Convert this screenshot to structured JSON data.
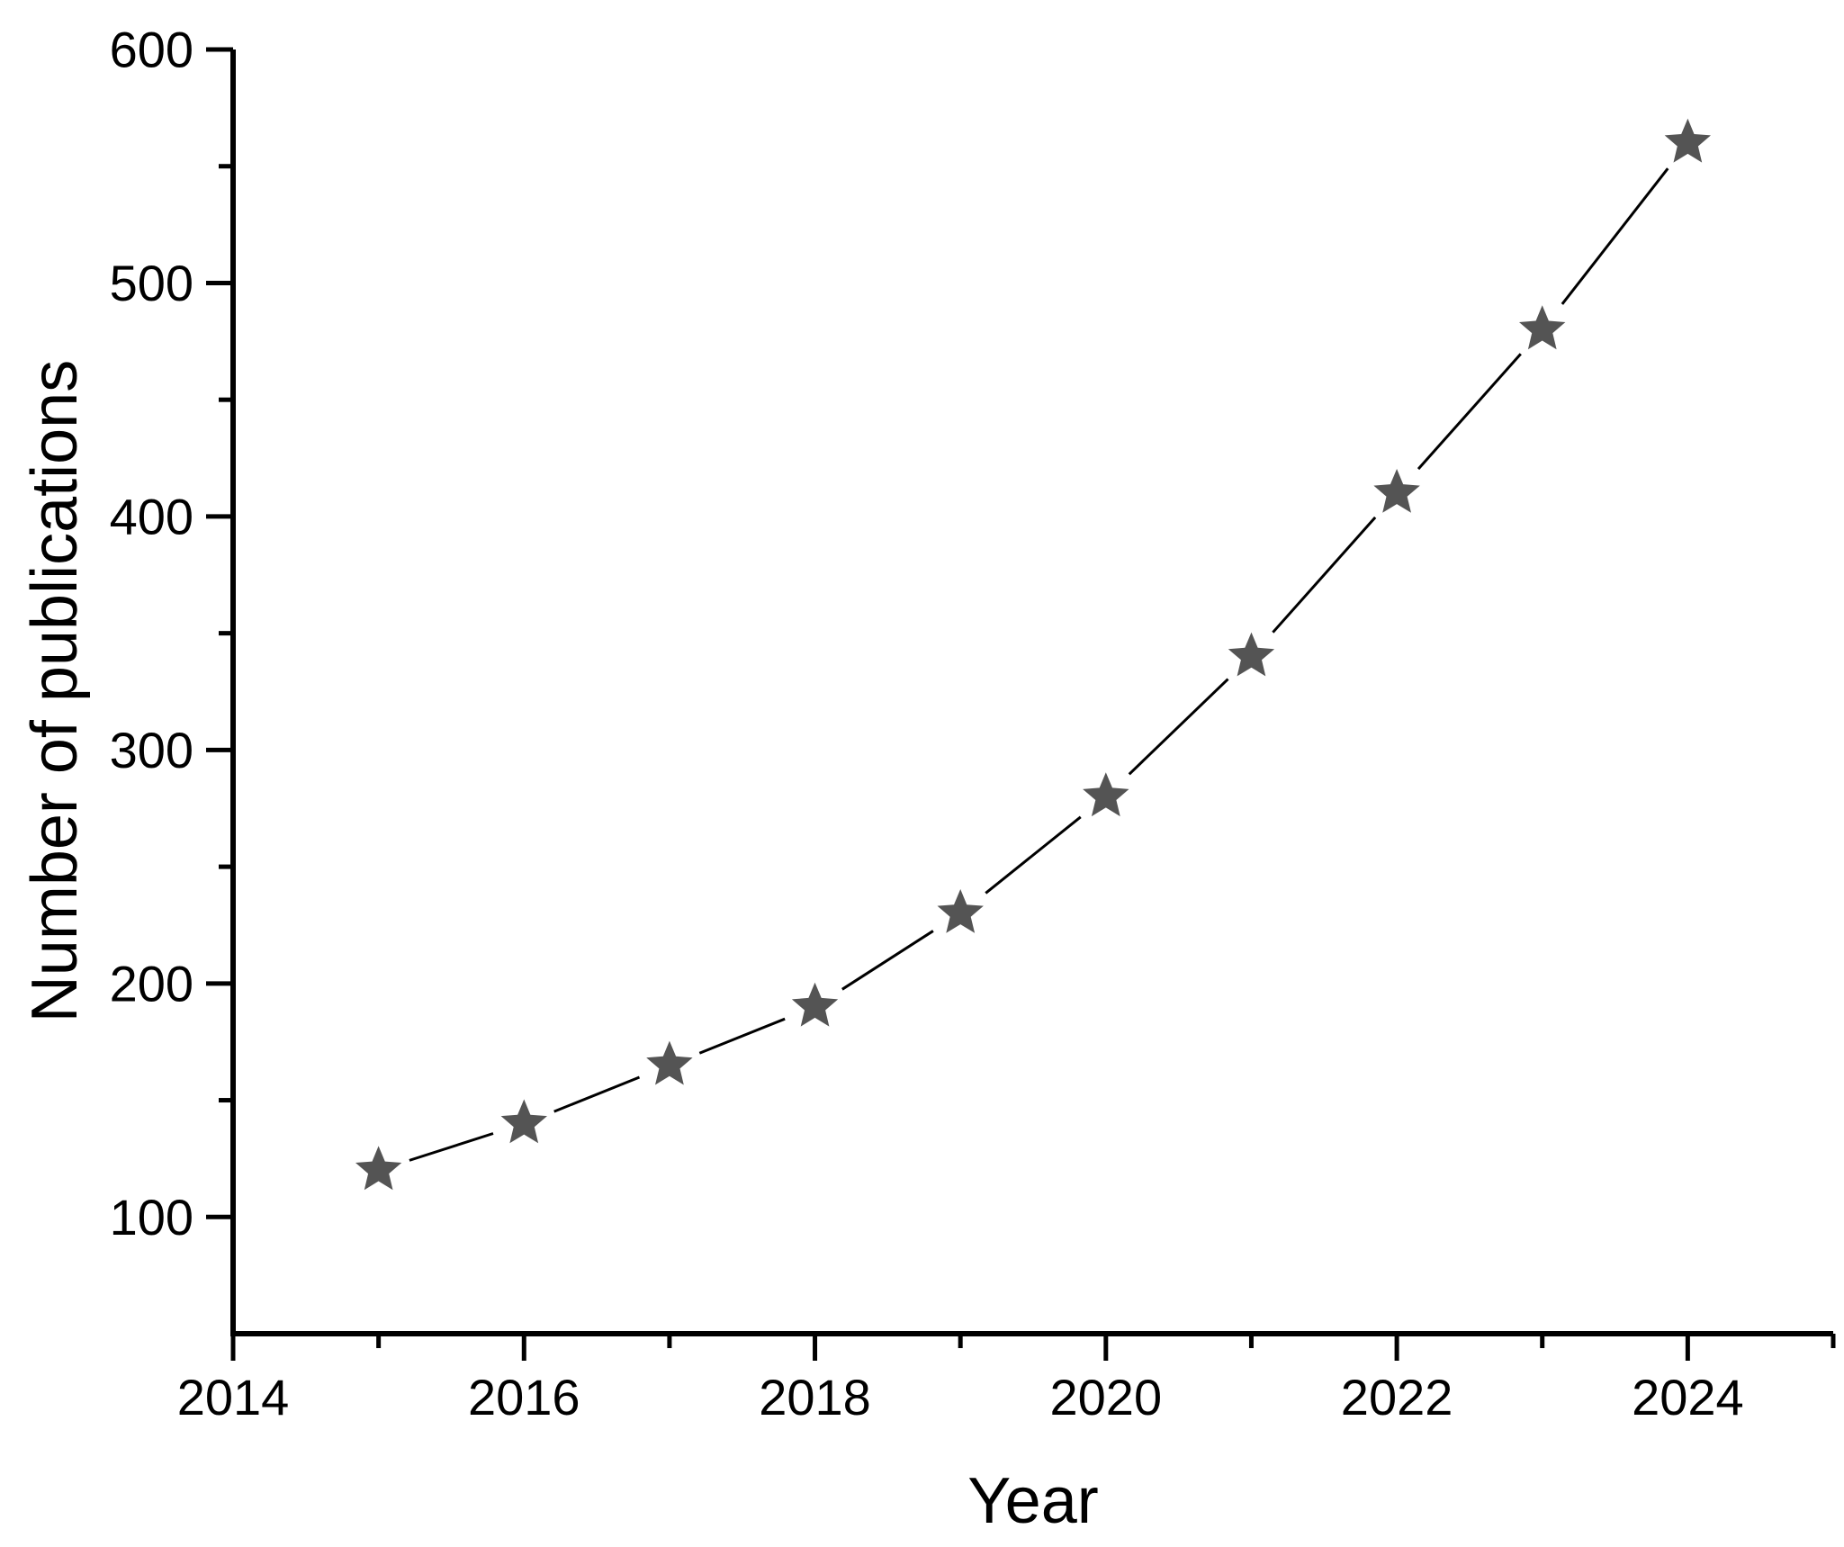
{
  "chart_data": {
    "type": "line-scatter",
    "title": "",
    "xlabel": "Year",
    "ylabel": "Number of publications",
    "x": [
      2015,
      2016,
      2017,
      2018,
      2019,
      2020,
      2021,
      2022,
      2023,
      2024
    ],
    "series": [
      {
        "name": "Number of publications",
        "values": [
          120,
          140,
          165,
          190,
          230,
          280,
          340,
          410,
          480,
          560
        ]
      }
    ],
    "xlim": [
      2014,
      2025
    ],
    "ylim": [
      50,
      600
    ],
    "x_major_ticks": [
      2014,
      2016,
      2018,
      2020,
      2022,
      2024
    ],
    "x_minor_ticks": [
      2015,
      2017,
      2019,
      2021,
      2023,
      2025
    ],
    "y_major_ticks": [
      100,
      200,
      300,
      400,
      500,
      600
    ],
    "y_minor_ticks": [
      150,
      250,
      350,
      450,
      550
    ],
    "grid": false,
    "legend_position": "none",
    "marker": "star",
    "marker_color": "#545454",
    "line_color": "#000000",
    "axis_color": "#000000",
    "background_color": "#ffffff"
  }
}
